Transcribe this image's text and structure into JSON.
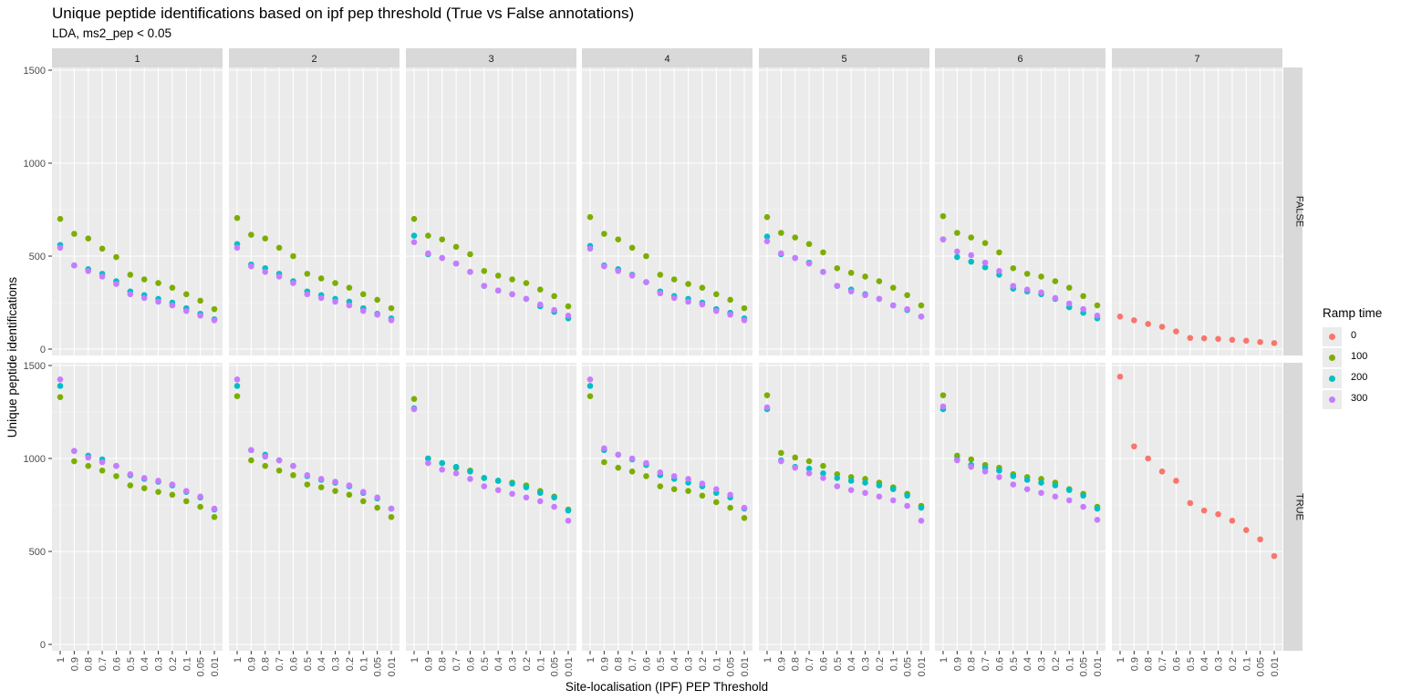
{
  "chart_data": {
    "type": "scatter",
    "title": "Unique peptide identifications based on ipf pep threshold (True vs False annotations)",
    "subtitle": "LDA, ms2_pep < 0.05",
    "xlabel": "Site-localisation (IPF) PEP Threshold",
    "ylabel": "Unique peptide identifications",
    "ylim": [
      0,
      1500
    ],
    "y_ticks": [
      "0",
      "500",
      "1000",
      "1500"
    ],
    "grid": true,
    "legend_position": "right",
    "legend_title": "Ramp time",
    "categories": [
      "1",
      "0.9",
      "0.8",
      "0.7",
      "0.6",
      "0.5",
      "0.4",
      "0.3",
      "0.2",
      "0.1",
      "0.05",
      "0.01"
    ],
    "col_facets": [
      "1",
      "2",
      "3",
      "4",
      "5",
      "6",
      "7"
    ],
    "row_facets": [
      "FALSE",
      "TRUE"
    ],
    "series_legend": [
      {
        "name": "0",
        "color": "#F8766D"
      },
      {
        "name": "100",
        "color": "#7CAE00"
      },
      {
        "name": "200",
        "color": "#00BFC4"
      },
      {
        "name": "300",
        "color": "#C77CFF"
      }
    ],
    "panels": [
      {
        "col": "1",
        "row": "FALSE",
        "series": [
          {
            "name": "100",
            "values": [
              700,
              620,
              595,
              540,
              495,
              400,
              375,
              355,
              330,
              295,
              260,
              215
            ]
          },
          {
            "name": "200",
            "values": [
              560,
              450,
              430,
              405,
              365,
              310,
              290,
              270,
              250,
              220,
              190,
              160
            ]
          },
          {
            "name": "300",
            "values": [
              545,
              450,
              420,
              390,
              350,
              295,
              275,
              255,
              235,
              205,
              180,
              155
            ]
          }
        ]
      },
      {
        "col": "2",
        "row": "FALSE",
        "series": [
          {
            "name": "100",
            "values": [
              705,
              615,
              595,
              545,
              500,
              405,
              380,
              355,
              330,
              295,
              265,
              220
            ]
          },
          {
            "name": "200",
            "values": [
              565,
              455,
              435,
              405,
              365,
              310,
              290,
              270,
              255,
              220,
              190,
              165
            ]
          },
          {
            "name": "300",
            "values": [
              545,
              445,
              415,
              390,
              355,
              295,
              275,
              255,
              235,
              205,
              185,
              155
            ]
          }
        ]
      },
      {
        "col": "3",
        "row": "FALSE",
        "series": [
          {
            "name": "100",
            "values": [
              700,
              610,
              590,
              550,
              510,
              420,
              395,
              375,
              355,
              320,
              285,
              230
            ]
          },
          {
            "name": "200",
            "values": [
              610,
              510,
              490,
              460,
              415,
              340,
              315,
              295,
              270,
              230,
              200,
              165
            ]
          },
          {
            "name": "300",
            "values": [
              575,
              515,
              490,
              460,
              415,
              340,
              315,
              295,
              270,
              240,
              210,
              180
            ]
          }
        ]
      },
      {
        "col": "4",
        "row": "FALSE",
        "series": [
          {
            "name": "100",
            "values": [
              710,
              620,
              590,
              545,
              500,
              400,
              375,
              350,
              330,
              295,
              265,
              220
            ]
          },
          {
            "name": "200",
            "values": [
              555,
              450,
              430,
              400,
              360,
              310,
              285,
              270,
              250,
              215,
              195,
              165
            ]
          },
          {
            "name": "300",
            "values": [
              540,
              445,
              420,
              395,
              360,
              300,
              275,
              255,
              240,
              205,
              185,
              155
            ]
          }
        ]
      },
      {
        "col": "5",
        "row": "FALSE",
        "series": [
          {
            "name": "100",
            "values": [
              710,
              625,
              600,
              565,
              520,
              435,
              410,
              390,
              365,
              330,
              290,
              235
            ]
          },
          {
            "name": "200",
            "values": [
              605,
              510,
              490,
              465,
              415,
              340,
              320,
              295,
              270,
              235,
              210,
              175
            ]
          },
          {
            "name": "300",
            "values": [
              580,
              515,
              490,
              460,
              415,
              340,
              310,
              290,
              270,
              235,
              215,
              175
            ]
          }
        ]
      },
      {
        "col": "6",
        "row": "FALSE",
        "series": [
          {
            "name": "100",
            "values": [
              715,
              625,
              600,
              570,
              520,
              435,
              405,
              390,
              365,
              330,
              285,
              235
            ]
          },
          {
            "name": "200",
            "values": [
              590,
              495,
              470,
              440,
              400,
              325,
              310,
              295,
              270,
              225,
              195,
              165
            ]
          },
          {
            "name": "300",
            "values": [
              590,
              525,
              505,
              465,
              420,
              340,
              320,
              305,
              275,
              245,
              215,
              180
            ]
          }
        ]
      },
      {
        "col": "7",
        "row": "FALSE",
        "series": [
          {
            "name": "0",
            "values": [
              175,
              155,
              135,
              120,
              95,
              60,
              58,
              55,
              50,
              45,
              38,
              32
            ]
          }
        ]
      },
      {
        "col": "1",
        "row": "TRUE",
        "series": [
          {
            "name": "100",
            "values": [
              1330,
              985,
              960,
              935,
              905,
              855,
              840,
              820,
              805,
              770,
              740,
              685
            ]
          },
          {
            "name": "200",
            "values": [
              1390,
              1040,
              1015,
              995,
              960,
              910,
              890,
              875,
              855,
              820,
              790,
              725
            ]
          },
          {
            "name": "300",
            "values": [
              1425,
              1040,
              1005,
              980,
              960,
              915,
              895,
              880,
              860,
              825,
              795,
              730
            ]
          }
        ]
      },
      {
        "col": "2",
        "row": "TRUE",
        "series": [
          {
            "name": "100",
            "values": [
              1335,
              990,
              960,
              935,
              910,
              860,
              845,
              825,
              805,
              770,
              735,
              685
            ]
          },
          {
            "name": "200",
            "values": [
              1390,
              1045,
              1020,
              990,
              960,
              905,
              885,
              870,
              850,
              815,
              785,
              730
            ]
          },
          {
            "name": "300",
            "values": [
              1425,
              1045,
              1010,
              990,
              960,
              910,
              890,
              875,
              855,
              820,
              790,
              730
            ]
          }
        ]
      },
      {
        "col": "3",
        "row": "TRUE",
        "series": [
          {
            "name": "100",
            "values": [
              1320,
              1000,
              975,
              950,
              935,
              895,
              880,
              870,
              855,
              825,
              795,
              725
            ]
          },
          {
            "name": "200",
            "values": [
              1270,
              1000,
              975,
              955,
              930,
              895,
              880,
              865,
              845,
              815,
              790,
              720
            ]
          },
          {
            "name": "300",
            "values": [
              1265,
              975,
              940,
              920,
              890,
              850,
              830,
              810,
              790,
              770,
              740,
              665
            ]
          }
        ]
      },
      {
        "col": "4",
        "row": "TRUE",
        "series": [
          {
            "name": "100",
            "values": [
              1335,
              980,
              950,
              930,
              905,
              850,
              835,
              825,
              800,
              765,
              735,
              680
            ]
          },
          {
            "name": "200",
            "values": [
              1390,
              1045,
              1020,
              995,
              965,
              910,
              890,
              870,
              850,
              815,
              790,
              730
            ]
          },
          {
            "name": "300",
            "values": [
              1425,
              1055,
              1020,
              1000,
              975,
              925,
              905,
              890,
              865,
              835,
              805,
              735
            ]
          }
        ]
      },
      {
        "col": "5",
        "row": "TRUE",
        "series": [
          {
            "name": "100",
            "values": [
              1340,
              1030,
              1005,
              985,
              960,
              915,
              900,
              890,
              870,
              845,
              810,
              745
            ]
          },
          {
            "name": "200",
            "values": [
              1265,
              990,
              955,
              945,
              920,
              895,
              880,
              870,
              855,
              835,
              800,
              735
            ]
          },
          {
            "name": "300",
            "values": [
              1275,
              985,
              950,
              920,
              895,
              850,
              830,
              815,
              795,
              775,
              745,
              665
            ]
          }
        ]
      },
      {
        "col": "6",
        "row": "TRUE",
        "series": [
          {
            "name": "100",
            "values": [
              1340,
              1015,
              995,
              965,
              950,
              915,
              900,
              890,
              870,
              835,
              810,
              740
            ]
          },
          {
            "name": "200",
            "values": [
              1265,
              995,
              965,
              950,
              935,
              905,
              885,
              870,
              855,
              830,
              800,
              730
            ]
          },
          {
            "name": "300",
            "values": [
              1280,
              990,
              955,
              930,
              900,
              860,
              835,
              815,
              795,
              775,
              740,
              670
            ]
          }
        ]
      },
      {
        "col": "7",
        "row": "TRUE",
        "series": [
          {
            "name": "0",
            "values": [
              1440,
              1065,
              1000,
              930,
              880,
              760,
              720,
              700,
              665,
              615,
              565,
              475
            ]
          }
        ]
      }
    ]
  }
}
